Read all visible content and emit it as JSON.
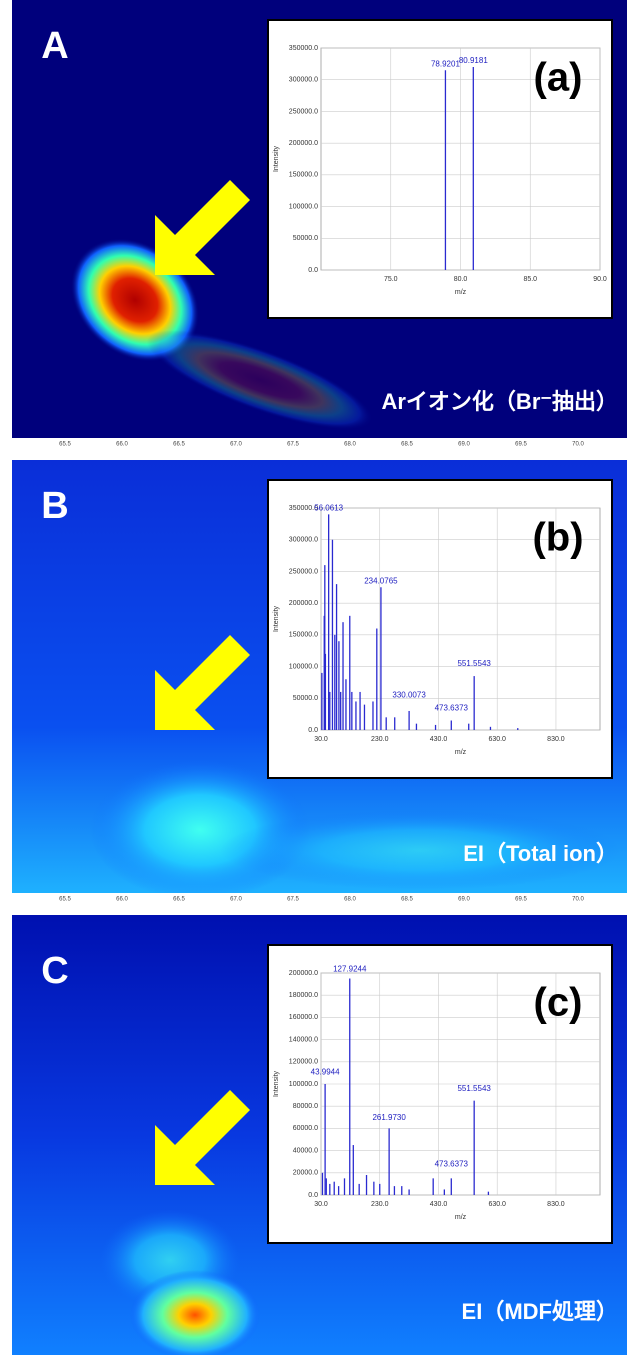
{
  "chart_data": [
    {
      "type": "bar",
      "panel": "A",
      "label": "(a)",
      "caption": "Arイオン化（Br⁻抽出）",
      "heatmap_xticks": [
        "65.5",
        "66.0",
        "66.5",
        "67.0",
        "67.5",
        "68.0",
        "68.5",
        "69.0",
        "69.5",
        "70.0"
      ],
      "xlabel": "m/z",
      "ylabel": "Intensity",
      "color": "#2a2ad0",
      "xlim": [
        70,
        90
      ],
      "xticks": [
        {
          "value": 75,
          "label": "75.0"
        },
        {
          "value": 80,
          "label": "80.0"
        },
        {
          "value": 85,
          "label": "85.0"
        },
        {
          "value": 90,
          "label": "90.0"
        }
      ],
      "ylim": [
        0,
        350000
      ],
      "yticks": [
        {
          "value": 0,
          "label": "0.0"
        },
        {
          "value": 50000,
          "label": "50000.0"
        },
        {
          "value": 100000,
          "label": "100000.0"
        },
        {
          "value": 150000,
          "label": "150000.0"
        },
        {
          "value": 200000,
          "label": "200000.0"
        },
        {
          "value": 250000,
          "label": "250000.0"
        },
        {
          "value": 300000,
          "label": "300000.0"
        },
        {
          "value": 350000,
          "label": "350000.0"
        }
      ],
      "x": [
        78.9201,
        80.9181
      ],
      "values": [
        315000,
        320000
      ],
      "annotations": [
        {
          "label": "78.9201",
          "x": 78.9201,
          "y": 315000
        },
        {
          "label": "80.9181",
          "x": 80.9181,
          "y": 320000
        }
      ]
    },
    {
      "type": "bar",
      "panel": "B",
      "label": "(b)",
      "caption": "EI（Total ion）",
      "heatmap_xticks": [
        "65.5",
        "66.0",
        "66.5",
        "67.0",
        "67.5",
        "68.0",
        "68.5",
        "69.0",
        "69.5",
        "70.0"
      ],
      "xlabel": "m/z",
      "ylabel": "Intensity",
      "color": "#2a2ad0",
      "xlim": [
        30,
        980
      ],
      "xticks": [
        {
          "value": 30,
          "label": "30.0"
        },
        {
          "value": 230,
          "label": "230.0"
        },
        {
          "value": 430,
          "label": "430.0"
        },
        {
          "value": 630,
          "label": "630.0"
        },
        {
          "value": 830,
          "label": "830.0"
        }
      ],
      "ylim": [
        0,
        350000
      ],
      "yticks": [
        {
          "value": 0,
          "label": "0.0"
        },
        {
          "value": 50000,
          "label": "50000.0"
        },
        {
          "value": 100000,
          "label": "100000.0"
        },
        {
          "value": 150000,
          "label": "150000.0"
        },
        {
          "value": 200000,
          "label": "200000.0"
        },
        {
          "value": 250000,
          "label": "250000.0"
        },
        {
          "value": 300000,
          "label": "300000.0"
        },
        {
          "value": 350000,
          "label": "350000.0"
        }
      ],
      "x": [
        33,
        41,
        43,
        45,
        56.0613,
        60,
        69,
        77,
        83,
        91,
        97,
        105,
        115,
        128,
        135,
        149,
        163,
        178,
        207,
        220,
        234.0765,
        252,
        281,
        330.0073,
        355,
        420,
        473.6373,
        533,
        551.5543,
        607,
        700
      ],
      "values": [
        90000,
        180000,
        260000,
        120000,
        340000,
        60000,
        300000,
        150000,
        230000,
        140000,
        60000,
        170000,
        80000,
        180000,
        60000,
        45000,
        60000,
        40000,
        45000,
        160000,
        225000,
        20000,
        20000,
        30000,
        10000,
        8000,
        15000,
        10000,
        85000,
        5000,
        3000
      ],
      "annotations": [
        {
          "label": "56.0613",
          "x": 56.0613,
          "y": 340000
        },
        {
          "label": "234.0765",
          "x": 234.0765,
          "y": 225000
        },
        {
          "label": "330.0073",
          "x": 330.0073,
          "y": 45000
        },
        {
          "label": "473.6373",
          "x": 473.6373,
          "y": 25000
        },
        {
          "label": "551.5543",
          "x": 551.5543,
          "y": 95000
        }
      ]
    },
    {
      "type": "bar",
      "panel": "C",
      "label": "(c)",
      "caption": "EI（MDF処理）",
      "xlabel": "m/z",
      "ylabel": "Intensity",
      "color": "#2a2ad0",
      "xlim": [
        30,
        980
      ],
      "xticks": [
        {
          "value": 30,
          "label": "30.0"
        },
        {
          "value": 230,
          "label": "230.0"
        },
        {
          "value": 430,
          "label": "430.0"
        },
        {
          "value": 630,
          "label": "630.0"
        },
        {
          "value": 830,
          "label": "830.0"
        }
      ],
      "ylim": [
        0,
        200000
      ],
      "yticks": [
        {
          "value": 0,
          "label": "0.0"
        },
        {
          "value": 20000,
          "label": "20000.0"
        },
        {
          "value": 40000,
          "label": "40000.0"
        },
        {
          "value": 60000,
          "label": "60000.0"
        },
        {
          "value": 80000,
          "label": "80000.0"
        },
        {
          "value": 100000,
          "label": "100000.0"
        },
        {
          "value": 120000,
          "label": "120000.0"
        },
        {
          "value": 140000,
          "label": "140000.0"
        },
        {
          "value": 160000,
          "label": "160000.0"
        },
        {
          "value": 180000,
          "label": "180000.0"
        },
        {
          "value": 200000,
          "label": "200000.0"
        }
      ],
      "x": [
        35,
        43.9944,
        48,
        60,
        75,
        90,
        110,
        127.9244,
        140,
        160,
        185,
        210,
        230,
        261.973,
        280,
        305,
        330,
        412,
        450,
        473.6373,
        551.5543,
        600
      ],
      "values": [
        20000,
        100000,
        15000,
        10000,
        12000,
        8000,
        15000,
        195000,
        45000,
        10000,
        18000,
        12000,
        10000,
        60000,
        8000,
        8000,
        5000,
        15000,
        5000,
        15000,
        85000,
        3000
      ],
      "annotations": [
        {
          "label": "43.9944",
          "x": 43.9944,
          "y": 105000
        },
        {
          "label": "127.9244",
          "x": 127.9244,
          "y": 198000
        },
        {
          "label": "261.9730",
          "x": 261.973,
          "y": 64000
        },
        {
          "label": "473.6373",
          "x": 473.6373,
          "y": 22000
        },
        {
          "label": "551.5543",
          "x": 551.5543,
          "y": 90000
        }
      ]
    }
  ]
}
